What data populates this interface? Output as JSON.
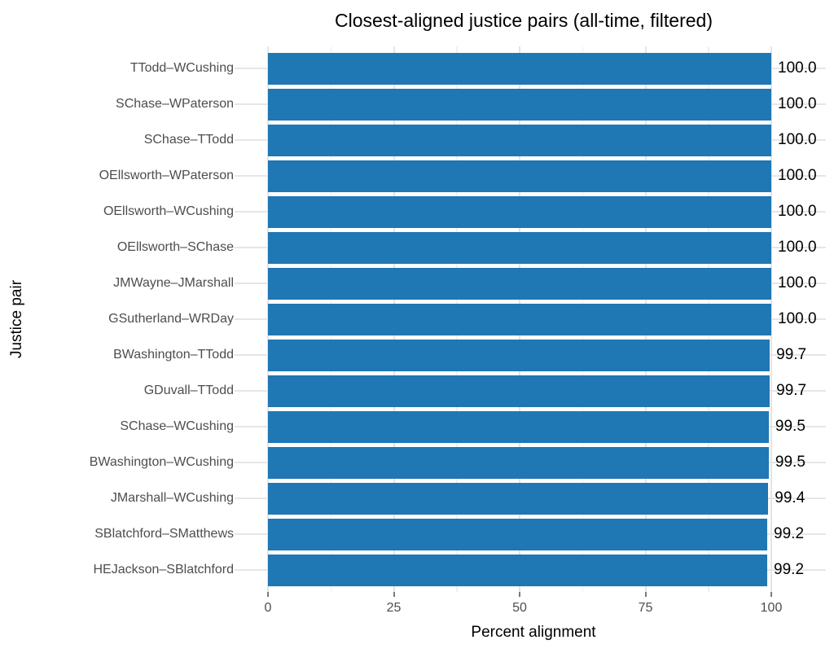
{
  "chart_data": {
    "type": "bar",
    "orientation": "horizontal",
    "title": "Closest-aligned justice pairs (all-time, filtered)",
    "xlabel": "Percent alignment",
    "ylabel": "Justice pair",
    "categories": [
      "TTodd–WCushing",
      "SChase–WPaterson",
      "SChase–TTodd",
      "OEllsworth–WPaterson",
      "OEllsworth–WCushing",
      "OEllsworth–SChase",
      "JMWayne–JMarshall",
      "GSutherland–WRDay",
      "BWashington–TTodd",
      "GDuvall–TTodd",
      "SChase–WCushing",
      "BWashington–WCushing",
      "JMarshall–WCushing",
      "SBlatchford–SMatthews",
      "HEJackson–SBlatchford"
    ],
    "values": [
      100.0,
      100.0,
      100.0,
      100.0,
      100.0,
      100.0,
      100.0,
      100.0,
      99.7,
      99.7,
      99.5,
      99.5,
      99.4,
      99.2,
      99.2
    ],
    "bar_labels": [
      "100.0",
      "100.0",
      "100.0",
      "100.0",
      "100.0",
      "100.0",
      "100.0",
      "100.0",
      "99.7",
      "99.7",
      "99.5",
      "99.5",
      "99.4",
      "99.2",
      "99.2"
    ],
    "x_ticks": [
      0,
      25,
      50,
      75,
      100
    ],
    "x_tick_labels": [
      "0",
      "25",
      "50",
      "75",
      "100"
    ],
    "x_minor_ticks": [
      12.5,
      37.5,
      62.5,
      87.5
    ],
    "xlim": [
      -5.3,
      110.8
    ],
    "grid": true,
    "legend": "none",
    "colors": {
      "bar": "#1f77b4",
      "grid_major": "#e4e4e4",
      "grid_minor": "#f0f0f0",
      "row_grid": "#e6e6e6",
      "axis_text": "#4d4d4d",
      "value_label": "#000000",
      "tick_mark": "#7a7a7a",
      "background": "#ffffff"
    }
  }
}
